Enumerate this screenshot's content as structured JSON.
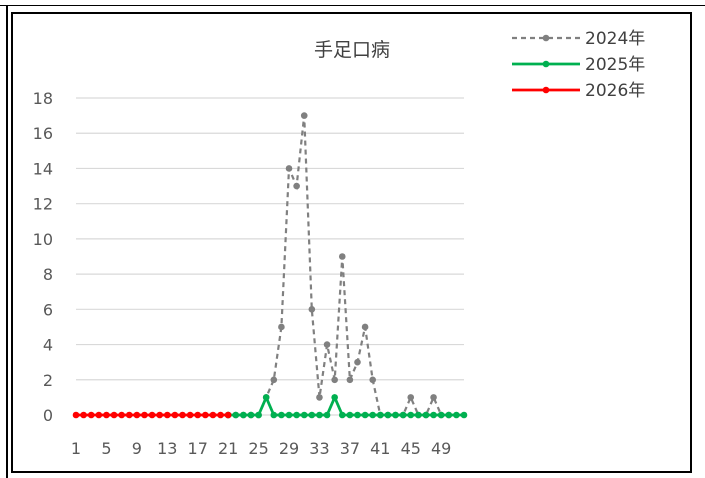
{
  "chart_data": {
    "type": "line",
    "title": "手足口病",
    "xlabel": "",
    "ylabel": "",
    "ylim": [
      0,
      18
    ],
    "yticks": [
      "0",
      "2",
      "4",
      "6",
      "8",
      "10",
      "12",
      "14",
      "16",
      "18"
    ],
    "xticks": [
      "1",
      "5",
      "9",
      "13",
      "17",
      "21",
      "25",
      "29",
      "33",
      "37",
      "41",
      "45",
      "49"
    ],
    "x_range": [
      1,
      52
    ],
    "grid": true,
    "legend_position": "top-right",
    "series": [
      {
        "name": "2024年",
        "color": "#808080",
        "style": "dashed",
        "start_week": 21,
        "values": [
          0,
          0,
          0,
          0,
          0,
          1,
          2,
          5,
          14,
          13,
          17,
          6,
          1,
          4,
          2,
          9,
          2,
          3,
          5,
          2,
          0,
          0,
          0,
          0,
          1,
          0,
          0,
          1,
          0,
          0
        ]
      },
      {
        "name": "2025年",
        "color": "#00b050",
        "style": "solid",
        "start_week": 21,
        "values": [
          0,
          0,
          0,
          0,
          0,
          1,
          0,
          0,
          0,
          0,
          0,
          0,
          0,
          0,
          1,
          0,
          0,
          0,
          0,
          0,
          0,
          0,
          0,
          0,
          0,
          0,
          0,
          0,
          0,
          0,
          0,
          0
        ]
      },
      {
        "name": "2026年",
        "color": "#ff0000",
        "style": "solid",
        "start_week": 1,
        "values": [
          0,
          0,
          0,
          0,
          0,
          0,
          0,
          0,
          0,
          0,
          0,
          0,
          0,
          0,
          0,
          0,
          0,
          0,
          0,
          0,
          0
        ]
      }
    ]
  }
}
